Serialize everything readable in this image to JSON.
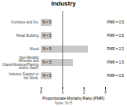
{
  "chart_data": {
    "type": "bar",
    "orientation": "horizontal",
    "title": "Industry",
    "xlabel": "Proportionate Mortality Ratio (PMR)",
    "categories": [
      "Furniture and Fix.",
      "Retail Building",
      "Wood",
      "Non-Metallic Minerals and Glass/Abrasive/Planing and/or Sash.",
      "Industry Support or the Work."
    ],
    "values": [
      0.5,
      0.5,
      2.2,
      1.5,
      0.5
    ],
    "data_labels": true,
    "value_labels": [
      "PMR = 0.5",
      "PMR = 0.5",
      "PMR = 2.2",
      "PMR = 1.5",
      "PMR = 0.5"
    ],
    "color": "#c8c8c8",
    "xlim": [
      0,
      3
    ],
    "xticks": [
      0,
      1,
      2,
      3
    ],
    "reference_line": 1,
    "annotations": [
      {
        "category": "Furniture and Fix.",
        "text": "N < 5"
      },
      {
        "category": "Retail Building",
        "text": "N < 5"
      },
      {
        "category": "Wood",
        "text": "N < 5"
      },
      {
        "category": "Non-Metallic Minerals and Glass/Abrasive/Planing and/or Sash.",
        "text": "N < 5"
      },
      {
        "category": "Industry Support or the Work.",
        "text": "N < 5"
      }
    ],
    "note": "Note: N<5"
  }
}
